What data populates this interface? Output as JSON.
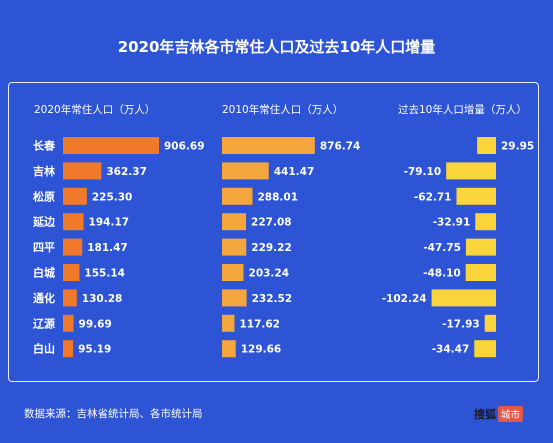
{
  "title": "2020年吉林各市常住人口及过去10年人口增量",
  "source": "数据来源：吉林省统计局、各市统计局",
  "brand": {
    "main": "搜狐",
    "tag": "城市"
  },
  "colors": {
    "background": "#2d54d4",
    "bar2020": "#f07a2a",
    "bar2010": "#f3a63c",
    "barChange": "#f9d43a"
  },
  "chart_data": {
    "type": "bar",
    "orientation": "horizontal",
    "title": "2020年吉林各市常住人口及过去10年人口增量",
    "categories": [
      "长春",
      "吉林",
      "松原",
      "延边",
      "四平",
      "白城",
      "通化",
      "辽源",
      "白山"
    ],
    "series": [
      {
        "name": "2020年常住人口（万人）",
        "values": [
          906.69,
          362.37,
          225.3,
          194.17,
          181.47,
          155.14,
          130.28,
          99.69,
          95.19
        ],
        "labels": [
          "906.69",
          "362.37",
          "225.30",
          "194.17",
          "181.47",
          "155.14",
          "130.28",
          "99.69",
          "95.19"
        ]
      },
      {
        "name": "2010年常住人口（万人）",
        "values": [
          876.74,
          441.47,
          288.01,
          227.08,
          229.22,
          203.24,
          232.52,
          117.62,
          129.66
        ],
        "labels": [
          "876.74",
          "441.47",
          "288.01",
          "227.08",
          "229.22",
          "203.24",
          "232.52",
          "117.62",
          "129.66"
        ]
      },
      {
        "name": "过去10年人口增量（万人）",
        "values": [
          29.95,
          -79.1,
          -62.71,
          -32.91,
          -47.75,
          -48.1,
          -102.24,
          -17.93,
          -34.47
        ],
        "labels": [
          "29.95",
          "-79.10",
          "-62.71",
          "-32.91",
          "-47.75",
          "-48.10",
          "-102.24",
          "-17.93",
          "-34.47"
        ]
      }
    ]
  }
}
